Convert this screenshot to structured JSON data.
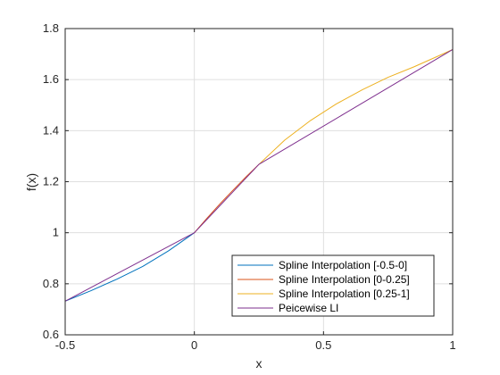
{
  "chart_data": {
    "type": "line",
    "xlabel": "x",
    "ylabel": "f(x)",
    "xlim": [
      -0.5,
      1
    ],
    "ylim": [
      0.6,
      1.8
    ],
    "grid": true,
    "legend_position": "bottom-right",
    "x_ticks": [
      -0.5,
      0,
      0.5,
      1
    ],
    "x_tick_labels": [
      "-0.5",
      "0",
      "0.5",
      "1"
    ],
    "y_ticks": [
      0.6,
      0.8,
      1,
      1.2,
      1.4,
      1.6,
      1.8
    ],
    "y_tick_labels": [
      "0.6",
      "0.8",
      "1",
      "1.2",
      "1.4",
      "1.6",
      "1.8"
    ],
    "series": [
      {
        "name": "Spline Interpolation [-0.5-0]",
        "color": "#0072BD",
        "x": [
          -0.5,
          -0.4,
          -0.3,
          -0.2,
          -0.1,
          0
        ],
        "y": [
          0.732,
          0.773,
          0.818,
          0.868,
          0.929,
          1.0
        ]
      },
      {
        "name": "Spline Interpolation [0-0.25]",
        "color": "#D95319",
        "x": [
          0,
          0.05,
          0.1,
          0.15,
          0.2,
          0.25
        ],
        "y": [
          1.0,
          1.058,
          1.114,
          1.167,
          1.219,
          1.268
        ]
      },
      {
        "name": "Spline Interpolation [0.25-1]",
        "color": "#EDB120",
        "x": [
          0.25,
          0.35,
          0.45,
          0.55,
          0.65,
          0.75,
          0.85,
          0.95,
          1.0
        ],
        "y": [
          1.268,
          1.363,
          1.44,
          1.505,
          1.56,
          1.609,
          1.65,
          1.695,
          1.718
        ]
      },
      {
        "name": "Peicewise LI",
        "color": "#7E2F8E",
        "x": [
          -0.5,
          0,
          0.25,
          1
        ],
        "y": [
          0.732,
          1.0,
          1.268,
          1.718
        ]
      }
    ]
  }
}
